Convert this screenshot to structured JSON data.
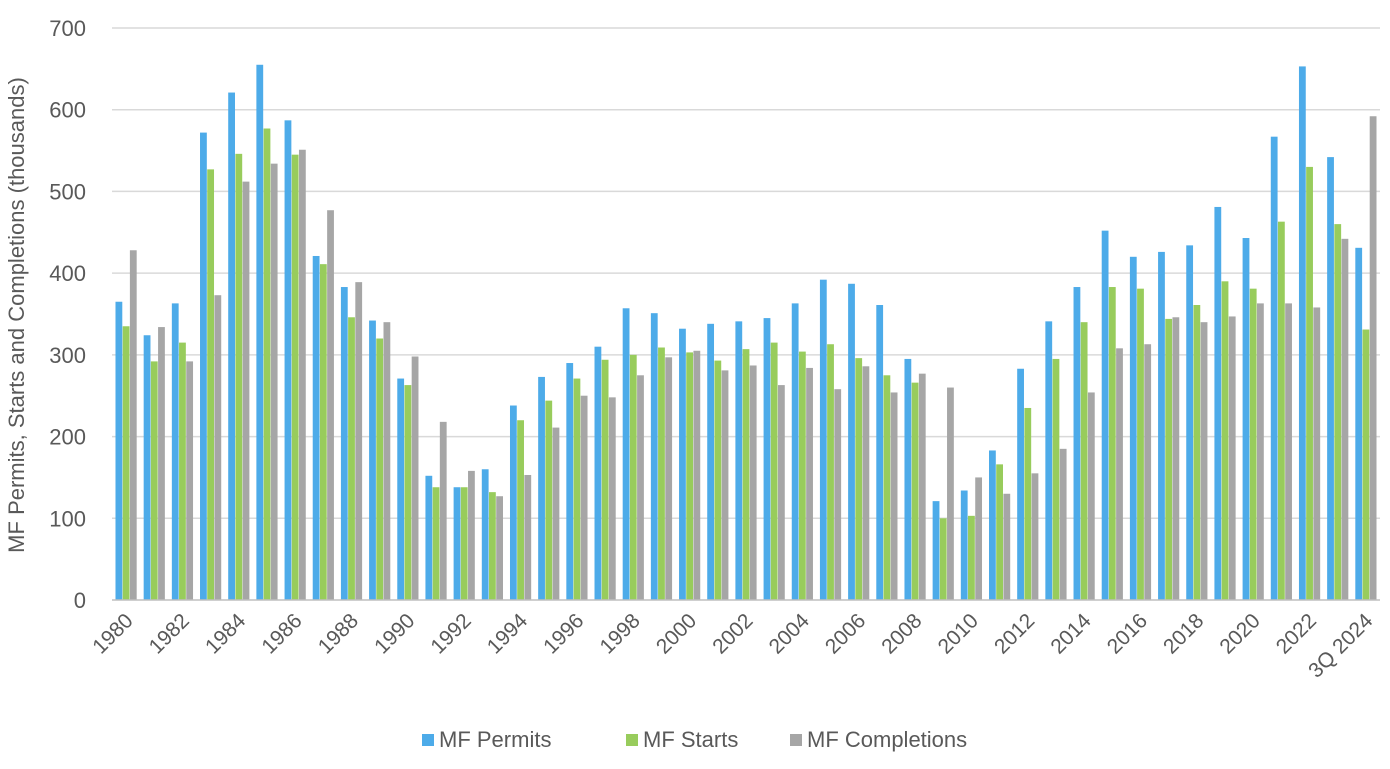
{
  "colors": {
    "permits": "#4dabe9",
    "starts": "#98cc5c",
    "completions": "#a6a6a6",
    "grid": "#d9d9d9",
    "axis": "#bfbfbf"
  },
  "chart_data": {
    "type": "bar",
    "title": "",
    "xlabel": "",
    "ylabel": "MF Permits, Starts and Completions (thousands)",
    "ylim": [
      0,
      700
    ],
    "yticks": [
      0,
      100,
      200,
      300,
      400,
      500,
      600,
      700
    ],
    "grid": true,
    "legend_position": "bottom",
    "categories": [
      "1980",
      "1981",
      "1982",
      "1983",
      "1984",
      "1985",
      "1986",
      "1987",
      "1988",
      "1989",
      "1990",
      "1991",
      "1992",
      "1993",
      "1994",
      "1995",
      "1996",
      "1997",
      "1998",
      "1999",
      "2000",
      "2001",
      "2002",
      "2003",
      "2004",
      "2005",
      "2006",
      "2007",
      "2008",
      "2009",
      "2010",
      "2011",
      "2012",
      "2013",
      "2014",
      "2015",
      "2016",
      "2017",
      "2018",
      "2019",
      "2020",
      "2021",
      "2022",
      "2023",
      "3Q 2024"
    ],
    "tick_labels": [
      "1980",
      "",
      "1982",
      "",
      "1984",
      "",
      "1986",
      "",
      "1988",
      "",
      "1990",
      "",
      "1992",
      "",
      "1994",
      "",
      "1996",
      "",
      "1998",
      "",
      "2000",
      "",
      "2002",
      "",
      "2004",
      "",
      "2006",
      "",
      "2008",
      "",
      "2010",
      "",
      "2012",
      "",
      "2014",
      "",
      "2016",
      "",
      "2018",
      "",
      "2020",
      "",
      "2022",
      "",
      "3Q 2024"
    ],
    "series": [
      {
        "name": "MF Permits",
        "color_key": "permits",
        "values": [
          365,
          324,
          363,
          572,
          621,
          655,
          587,
          421,
          383,
          342,
          271,
          152,
          138,
          160,
          238,
          273,
          290,
          310,
          357,
          351,
          332,
          338,
          341,
          345,
          363,
          392,
          387,
          361,
          295,
          121,
          134,
          183,
          283,
          341,
          383,
          452,
          420,
          426,
          434,
          481,
          443,
          567,
          653,
          542,
          431
        ]
      },
      {
        "name": "MF Starts",
        "color_key": "starts",
        "values": [
          335,
          292,
          315,
          527,
          546,
          577,
          545,
          411,
          346,
          320,
          263,
          138,
          138,
          132,
          220,
          244,
          271,
          294,
          300,
          309,
          303,
          293,
          307,
          315,
          304,
          313,
          296,
          275,
          266,
          100,
          103,
          166,
          235,
          295,
          340,
          383,
          381,
          344,
          361,
          390,
          381,
          463,
          530,
          460,
          331
        ]
      },
      {
        "name": "MF Completions",
        "color_key": "completions",
        "values": [
          428,
          334,
          292,
          373,
          512,
          534,
          551,
          477,
          389,
          340,
          298,
          218,
          158,
          127,
          153,
          211,
          250,
          248,
          275,
          297,
          305,
          281,
          287,
          263,
          284,
          258,
          286,
          254,
          277,
          260,
          150,
          130,
          155,
          185,
          254,
          308,
          313,
          346,
          340,
          347,
          363,
          363,
          358,
          442,
          592
        ]
      }
    ]
  }
}
